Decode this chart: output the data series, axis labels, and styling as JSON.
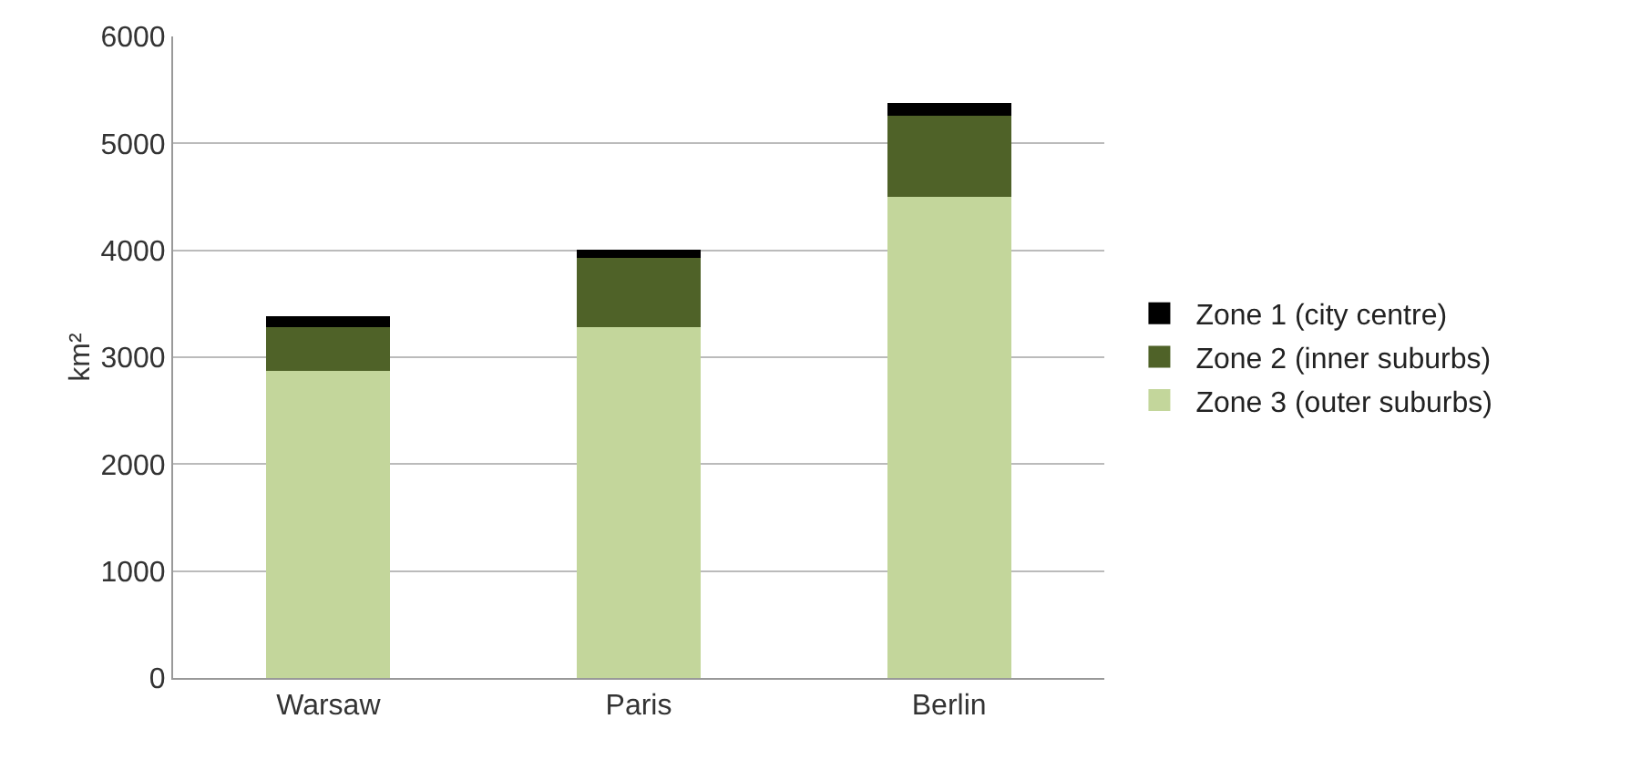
{
  "chart_data": {
    "type": "bar",
    "stacked": true,
    "ylabel": "km²",
    "categories": [
      "Warsaw",
      "Paris",
      "Berlin"
    ],
    "series": [
      {
        "name": "Zone 3 (outer suburbs)",
        "color": "#c3d69b",
        "values": [
          2870,
          3280,
          4500
        ]
      },
      {
        "name": "Zone 2 (inner suburbs)",
        "color": "#4f6228",
        "values": [
          410,
          650,
          760
        ]
      },
      {
        "name": "Zone 1 (city centre)",
        "color": "#000000",
        "values": [
          100,
          80,
          120
        ]
      }
    ],
    "ylim": [
      0,
      6000
    ],
    "yticks": [
      0,
      1000,
      2000,
      3000,
      4000,
      5000,
      6000
    ],
    "grid": "y",
    "legend": "right"
  }
}
